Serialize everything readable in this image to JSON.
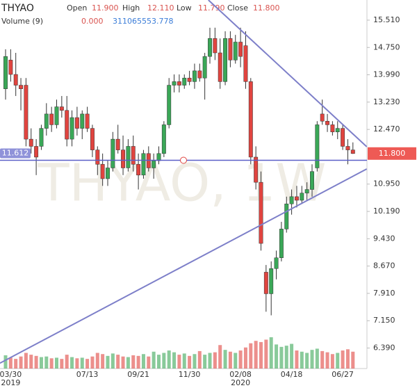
{
  "chart_data": {
    "type": "candlestick",
    "title": "THYAO",
    "watermark": "THYAO, 1W",
    "header": {
      "open_label": "Open",
      "open": "11.900",
      "high_label": "High",
      "high": "12.110",
      "low_label": "Low",
      "low": "11.790",
      "close_label": "Close",
      "close": "11.800",
      "volume_label": "Volume (9)",
      "volume_value": "0.000",
      "volume_ma": "311065553.778"
    },
    "categories": [
      null,
      "03/30",
      null,
      null,
      null,
      null,
      null,
      null,
      null,
      null,
      null,
      null,
      null,
      null,
      null,
      null,
      "07/13",
      null,
      null,
      null,
      null,
      null,
      null,
      null,
      null,
      null,
      "09/21",
      null,
      null,
      null,
      null,
      null,
      null,
      null,
      null,
      null,
      "11/30",
      null,
      null,
      null,
      null,
      null,
      null,
      null,
      null,
      null,
      "02/08",
      null,
      null,
      null,
      null,
      null,
      null,
      null,
      null,
      null,
      "04/18",
      null,
      null,
      null,
      null,
      null,
      null,
      null,
      null,
      null,
      "06/27",
      null,
      null
    ],
    "years": [
      null,
      "2019",
      null,
      null,
      null,
      null,
      null,
      null,
      null,
      null,
      null,
      null,
      null,
      null,
      null,
      null,
      null,
      null,
      null,
      null,
      null,
      null,
      null,
      null,
      null,
      null,
      null,
      null,
      null,
      null,
      null,
      null,
      null,
      null,
      null,
      null,
      null,
      null,
      null,
      null,
      null,
      null,
      null,
      null,
      null,
      null,
      "2020",
      null,
      null,
      null,
      null,
      null,
      null,
      null,
      null,
      null,
      null,
      null,
      null,
      null,
      null,
      null,
      null,
      null,
      null,
      null,
      null,
      null,
      null
    ],
    "open": [
      13.6,
      14.4,
      14.0,
      13.7,
      13.7,
      12.2,
      12.0,
      12.0,
      12.5,
      12.9,
      12.6,
      13.1,
      13.0,
      12.2,
      12.8,
      12.5,
      12.9,
      12.5,
      11.9,
      11.5,
      11.1,
      11.4,
      12.2,
      11.9,
      11.4,
      12.0,
      11.5,
      11.2,
      11.8,
      11.4,
      11.6,
      11.8,
      12.6,
      13.7,
      13.8,
      13.7,
      13.9,
      13.8,
      14.1,
      13.9,
      14.5,
      15.0,
      14.6,
      13.8,
      15.0,
      14.4,
      14.9,
      14.8,
      13.8,
      11.7,
      11.0,
      8.5,
      7.9,
      8.6,
      8.9,
      9.7,
      10.4,
      10.6,
      10.5,
      10.7,
      10.8,
      11.4,
      12.9,
      12.7,
      12.6,
      12.4,
      12.5,
      12.0,
      11.9
    ],
    "high": [
      14.7,
      14.7,
      14.6,
      13.9,
      13.9,
      12.5,
      12.2,
      12.6,
      13.2,
      13.1,
      13.3,
      13.4,
      13.4,
      13.0,
      13.1,
      13.0,
      13.1,
      12.6,
      12.0,
      11.8,
      11.6,
      12.4,
      12.6,
      12.3,
      12.2,
      12.3,
      11.8,
      11.9,
      12.0,
      11.8,
      12.0,
      12.7,
      13.9,
      14.0,
      14.0,
      14.0,
      14.1,
      14.3,
      14.3,
      14.6,
      15.3,
      15.3,
      15.0,
      15.2,
      15.2,
      15.1,
      15.3,
      15.2,
      13.9,
      12.0,
      11.3,
      8.7,
      8.8,
      9.1,
      9.9,
      10.6,
      10.8,
      10.9,
      10.9,
      11.0,
      11.5,
      12.7,
      13.3,
      12.9,
      12.7,
      12.7,
      12.6,
      12.2,
      12.11
    ],
    "low": [
      13.3,
      13.8,
      13.4,
      13.0,
      12.0,
      11.8,
      11.2,
      11.9,
      12.3,
      12.4,
      12.5,
      12.8,
      12.0,
      12.0,
      12.3,
      12.2,
      12.4,
      11.7,
      11.2,
      10.9,
      10.9,
      11.3,
      11.8,
      11.2,
      11.3,
      11.3,
      10.8,
      11.1,
      11.3,
      11.1,
      11.5,
      11.7,
      12.5,
      13.5,
      13.5,
      13.6,
      13.7,
      13.6,
      13.8,
      13.3,
      14.3,
      14.4,
      13.6,
      13.7,
      14.2,
      14.3,
      14.2,
      13.6,
      11.5,
      10.8,
      9.1,
      7.4,
      7.3,
      8.3,
      8.8,
      9.6,
      10.1,
      10.3,
      10.4,
      10.5,
      10.6,
      11.3,
      12.6,
      12.4,
      12.3,
      12.2,
      11.9,
      11.5,
      11.79
    ],
    "close": [
      14.5,
      14.0,
      13.7,
      13.6,
      12.2,
      12.0,
      11.7,
      12.5,
      12.9,
      12.6,
      13.1,
      13.0,
      12.2,
      12.8,
      12.5,
      12.9,
      12.5,
      11.9,
      11.5,
      11.1,
      11.4,
      12.2,
      11.9,
      11.4,
      12.0,
      11.5,
      11.2,
      11.8,
      11.4,
      11.6,
      11.8,
      12.6,
      13.7,
      13.8,
      13.7,
      13.9,
      13.8,
      14.1,
      13.9,
      14.5,
      15.0,
      14.6,
      13.8,
      15.0,
      14.4,
      14.9,
      14.5,
      13.8,
      11.7,
      11.0,
      9.3,
      7.9,
      8.6,
      8.9,
      9.7,
      10.4,
      10.6,
      10.5,
      10.7,
      10.8,
      11.3,
      12.6,
      12.7,
      12.6,
      12.4,
      12.5,
      12.0,
      11.9,
      11.8
    ],
    "volume": [
      220000000,
      180000000,
      160000000,
      200000000,
      260000000,
      230000000,
      210000000,
      190000000,
      200000000,
      170000000,
      180000000,
      160000000,
      230000000,
      190000000,
      170000000,
      180000000,
      160000000,
      200000000,
      260000000,
      240000000,
      210000000,
      250000000,
      230000000,
      200000000,
      190000000,
      220000000,
      210000000,
      240000000,
      200000000,
      280000000,
      230000000,
      260000000,
      300000000,
      270000000,
      230000000,
      250000000,
      210000000,
      240000000,
      290000000,
      230000000,
      260000000,
      270000000,
      390000000,
      310000000,
      280000000,
      260000000,
      300000000,
      350000000,
      420000000,
      460000000,
      440000000,
      480000000,
      520000000,
      400000000,
      360000000,
      380000000,
      410000000,
      300000000,
      280000000,
      260000000,
      310000000,
      330000000,
      290000000,
      270000000,
      240000000,
      260000000,
      300000000,
      320000000,
      280000000
    ],
    "up_color": "#3aa757",
    "down_color": "#e0443f",
    "ylim": [
      5.82,
      16.07
    ],
    "yticks": [
      {
        "value": 15.51,
        "label": "15.510"
      },
      {
        "value": 14.75,
        "label": "14.750"
      },
      {
        "value": 13.99,
        "label": "13.990"
      },
      {
        "value": 13.23,
        "label": "13.230"
      },
      {
        "value": 12.47,
        "label": "12.470"
      },
      {
        "value": 10.95,
        "label": "10.950"
      },
      {
        "value": 10.19,
        "label": "10.190"
      },
      {
        "value": 9.43,
        "label": "9.430"
      },
      {
        "value": 8.67,
        "label": "8.670"
      },
      {
        "value": 7.91,
        "label": "7.910"
      },
      {
        "value": 7.15,
        "label": "7.150"
      },
      {
        "value": 6.39,
        "label": "6.390"
      }
    ],
    "hline": {
      "value": 11.612,
      "color": "#5b5fc7"
    },
    "last_price_label": "11.800",
    "trendlines": [
      {
        "points": [
          [
            39.7,
            16.07
          ],
          [
            70.7,
            11.99
          ]
        ],
        "color": "#7d7fc9"
      },
      {
        "points": [
          [
            -1.1,
            5.97
          ],
          [
            70.7,
            11.37
          ]
        ],
        "color": "#7d7fc9"
      }
    ]
  }
}
